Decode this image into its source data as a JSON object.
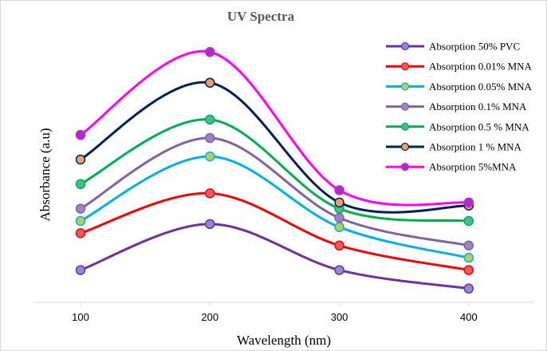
{
  "chart_data": {
    "type": "line",
    "title": "UV Spectra",
    "xlabel": "Wavelength (nm)",
    "ylabel": "Absorbance (a.u)",
    "x": [
      100,
      200,
      300,
      400
    ],
    "xlim": [
      100,
      450
    ],
    "ylim": [
      0,
      8
    ],
    "grid": false,
    "legend_position": "top-right",
    "y_ticks_visible": false,
    "series": [
      {
        "name": "Absorption 50% PVC",
        "color": "#7030A0",
        "marker_fill": "#8E8CD8",
        "values": [
          1.05,
          2.55,
          1.05,
          0.45
        ]
      },
      {
        "name": "Absorption 0.01% MNA",
        "color": "#FF0000",
        "marker_fill": "#E06060",
        "values": [
          2.25,
          3.55,
          1.85,
          1.05
        ]
      },
      {
        "name": "Absorption 0.05% MNA",
        "color": "#00B0F0",
        "marker_fill": "#B8D050",
        "values": [
          2.65,
          4.75,
          2.45,
          1.45
        ]
      },
      {
        "name": "Absorption 0.1% MNA",
        "color": "#8064A2",
        "marker_fill": "#9B84C0",
        "values": [
          3.05,
          5.35,
          2.75,
          1.85
        ]
      },
      {
        "name": "Absorption 0.5 % MNA",
        "color": "#00B050",
        "marker_fill": "#40C090",
        "values": [
          3.85,
          5.95,
          3.05,
          2.65
        ]
      },
      {
        "name": "Absorption 1 % MNA",
        "color": "#002060",
        "marker_fill": "#F0A060",
        "values": [
          4.65,
          7.15,
          3.25,
          3.15
        ]
      },
      {
        "name": "Absorption 5%MNA",
        "color": "#FF00FF",
        "marker_fill": "#9040B0",
        "values": [
          5.45,
          8.15,
          3.65,
          3.25
        ]
      }
    ]
  }
}
